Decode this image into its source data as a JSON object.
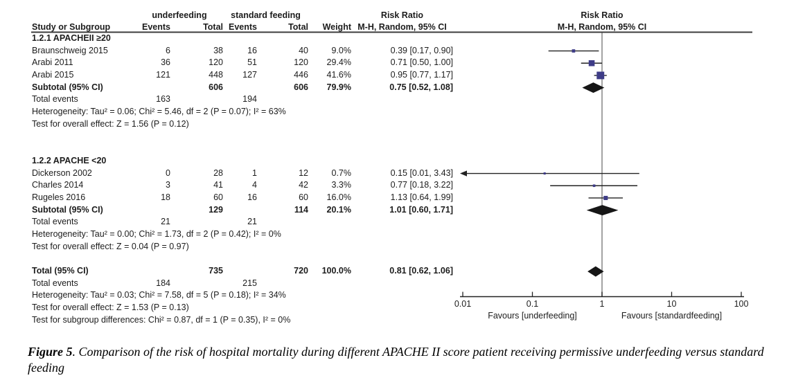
{
  "header": {
    "group1": "underfeeding",
    "group2": "standard feeding",
    "risk_ratio_left": "Risk Ratio",
    "risk_ratio_right": "Risk Ratio",
    "method_left": "M-H, Random, 95% CI",
    "method_right": "M-H, Random, 95% CI",
    "study": "Study or Subgroup",
    "events1": "Events",
    "total1": "Total",
    "events2": "Events",
    "total2": "Total",
    "weight": "Weight"
  },
  "chart_data": {
    "type": "forest",
    "x_scale": "log10",
    "x_ticks": [
      0.01,
      0.1,
      1,
      10,
      100
    ],
    "x_tick_labels": [
      "0.01",
      "0.1",
      "1",
      "10",
      "100"
    ],
    "null_value": 1,
    "favours_left": "Favours [underfeeding]",
    "favours_right": "Favours [standardfeeding]",
    "rows": [
      {
        "type": "subgroup",
        "label": "1.2.1 APACHEII ≥20"
      },
      {
        "type": "study",
        "study": "Braunschweig 2015",
        "e1": "6",
        "t1": "38",
        "e2": "16",
        "t2": "40",
        "weight": "9.0%",
        "ci": "0.39 [0.17, 0.90]",
        "rr": 0.39,
        "lo": 0.17,
        "hi": 0.9,
        "w": 9.0
      },
      {
        "type": "study",
        "study": "Arabi 2011",
        "e1": "36",
        "t1": "120",
        "e2": "51",
        "t2": "120",
        "weight": "29.4%",
        "ci": "0.71 [0.50, 1.00]",
        "rr": 0.71,
        "lo": 0.5,
        "hi": 1.0,
        "w": 29.4
      },
      {
        "type": "study",
        "study": "Arabi 2015",
        "e1": "121",
        "t1": "448",
        "e2": "127",
        "t2": "446",
        "weight": "41.6%",
        "ci": "0.95 [0.77, 1.17]",
        "rr": 0.95,
        "lo": 0.77,
        "hi": 1.17,
        "w": 41.6
      },
      {
        "type": "subtotal",
        "study": "Subtotal (95% CI)",
        "t1": "606",
        "t2": "606",
        "weight": "79.9%",
        "ci": "0.75 [0.52, 1.08]",
        "rr": 0.75,
        "lo": 0.52,
        "hi": 1.08
      },
      {
        "type": "events",
        "study": "Total events",
        "e1": "163",
        "e2": "194"
      },
      {
        "type": "stat",
        "text": "Heterogeneity: Tau² = 0.06; Chi² = 5.46, df = 2 (P = 0.07); I² = 63%"
      },
      {
        "type": "stat",
        "text": "Test for overall effect: Z = 1.56 (P = 0.12)"
      },
      {
        "type": "blank"
      },
      {
        "type": "blank"
      },
      {
        "type": "subgroup",
        "label": "1.2.2 APACHE <20"
      },
      {
        "type": "study",
        "study": "Dickerson 2002",
        "e1": "0",
        "t1": "28",
        "e2": "1",
        "t2": "12",
        "weight": "0.7%",
        "ci": "0.15 [0.01, 3.43]",
        "rr": 0.15,
        "lo": 0.01,
        "hi": 3.43,
        "w": 0.7,
        "arrow_left": true
      },
      {
        "type": "study",
        "study": "Charles 2014",
        "e1": "3",
        "t1": "41",
        "e2": "4",
        "t2": "42",
        "weight": "3.3%",
        "ci": "0.77 [0.18, 3.22]",
        "rr": 0.77,
        "lo": 0.18,
        "hi": 3.22,
        "w": 3.3
      },
      {
        "type": "study",
        "study": "Rugeles 2016",
        "e1": "18",
        "t1": "60",
        "e2": "16",
        "t2": "60",
        "weight": "16.0%",
        "ci": "1.13 [0.64, 1.99]",
        "rr": 1.13,
        "lo": 0.64,
        "hi": 1.99,
        "w": 16.0
      },
      {
        "type": "subtotal",
        "study": "Subtotal (95% CI)",
        "t1": "129",
        "t2": "114",
        "weight": "20.1%",
        "ci": "1.01 [0.60, 1.71]",
        "rr": 1.01,
        "lo": 0.6,
        "hi": 1.71
      },
      {
        "type": "events",
        "study": "Total events",
        "e1": "21",
        "e2": "21"
      },
      {
        "type": "stat",
        "text": "Heterogeneity: Tau² = 0.00; Chi² = 1.73, df = 2 (P = 0.42); I² = 0%"
      },
      {
        "type": "stat",
        "text": "Test for overall effect: Z = 0.04 (P = 0.97)"
      },
      {
        "type": "blank"
      },
      {
        "type": "total",
        "study": "Total (95% CI)",
        "t1": "735",
        "t2": "720",
        "weight": "100.0%",
        "ci": "0.81 [0.62, 1.06]",
        "rr": 0.81,
        "lo": 0.62,
        "hi": 1.06
      },
      {
        "type": "events",
        "study": "Total events",
        "e1": "184",
        "e2": "215"
      },
      {
        "type": "stat",
        "text": "Heterogeneity: Tau² = 0.03; Chi² = 7.58, df = 5 (P = 0.18); I² = 34%"
      },
      {
        "type": "stat",
        "text": "Test for overall effect: Z = 1.53 (P = 0.13)"
      },
      {
        "type": "stat",
        "text": "Test for subgroup differences: Chi² = 0.87, df = 1 (P = 0.35), I² = 0%"
      }
    ]
  },
  "caption": {
    "label": "Figure 5",
    "text": ". Comparison of the risk of hospital mortality during different APACHE II score patient receiving permissive underfeeding versus standard feeding"
  },
  "colors": {
    "square": "#3e3c87",
    "diamond": "#161616",
    "ci_line": "#222222",
    "axis": "#222222",
    "null_line": "#8c8c8c",
    "header_rule": "#3c3c3c"
  }
}
